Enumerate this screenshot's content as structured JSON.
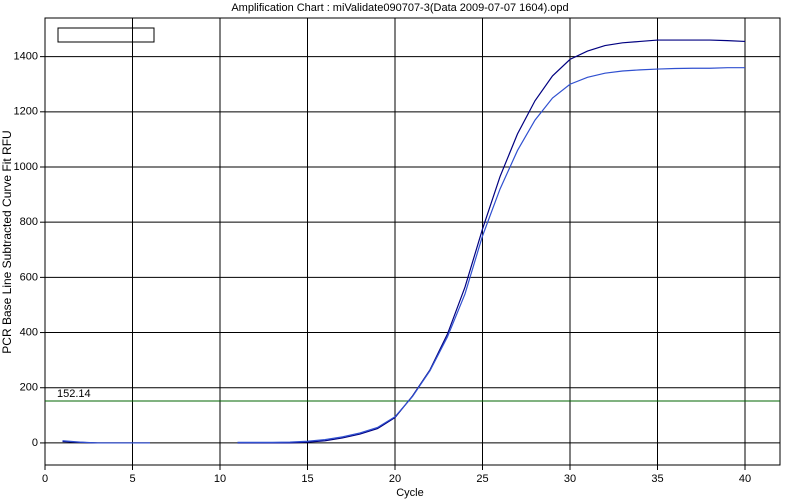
{
  "chart_data": {
    "type": "line",
    "title": "Amplification Chart : miValidate090707-3(Data 2009-07-07 1604).opd",
    "x_label": "Cycle",
    "y_label": "PCR Base Line Subtracted Curve Fit RFU",
    "x": [
      1,
      2,
      3,
      4,
      5,
      6,
      7,
      8,
      9,
      10,
      11,
      12,
      13,
      14,
      15,
      16,
      17,
      18,
      19,
      20,
      21,
      22,
      23,
      24,
      25,
      26,
      27,
      28,
      29,
      30,
      31,
      32,
      33,
      34,
      35,
      36,
      37,
      38,
      39,
      40
    ],
    "series": [
      {
        "color": "#000080",
        "values": [
          5,
          2,
          0,
          0,
          0,
          0,
          null,
          null,
          null,
          null,
          0,
          0,
          0,
          0,
          3,
          8,
          18,
          32,
          52,
          92,
          170,
          265,
          395,
          565,
          775,
          965,
          1120,
          1240,
          1330,
          1390,
          1420,
          1440,
          1450,
          1455,
          1460,
          1460,
          1460,
          1460,
          1458,
          1455
        ]
      },
      {
        "color": "#3050d0",
        "values": [
          8,
          3,
          0,
          0,
          0,
          0,
          null,
          null,
          null,
          null,
          2,
          2,
          2,
          3,
          6,
          12,
          22,
          36,
          56,
          95,
          168,
          262,
          385,
          540,
          750,
          920,
          1060,
          1170,
          1250,
          1300,
          1325,
          1340,
          1348,
          1352,
          1355,
          1357,
          1358,
          1358,
          1360,
          1360
        ]
      }
    ],
    "threshold": 152.14,
    "threshold_color": "#006400",
    "xlim": [
      0,
      42
    ],
    "ylim": [
      -80,
      1540
    ],
    "xticks": [
      0,
      5,
      10,
      15,
      20,
      25,
      30,
      35,
      40
    ],
    "yticks": [
      0,
      200,
      400,
      600,
      800,
      1000,
      1200,
      1400
    ],
    "grid": true
  }
}
